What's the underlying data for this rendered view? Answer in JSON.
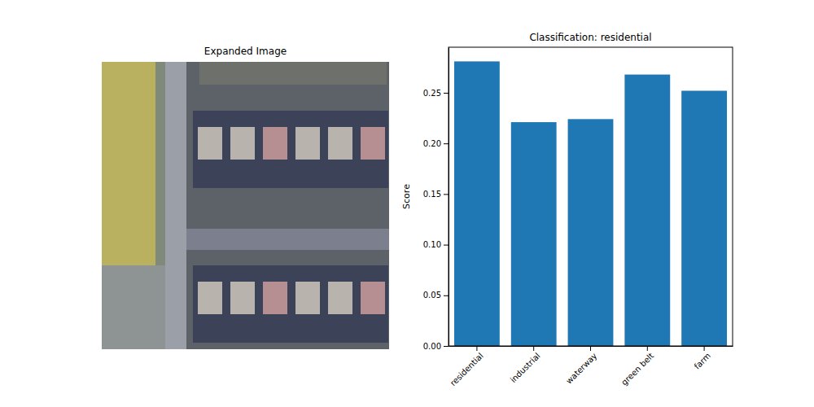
{
  "image": {
    "title": "Expanded Image"
  },
  "chart_data": {
    "type": "bar",
    "title": "Classification: residential",
    "categories": [
      "residential",
      "industrial",
      "waterway",
      "green belt",
      "farm"
    ],
    "values": [
      0.281,
      0.221,
      0.224,
      0.268,
      0.252
    ],
    "color": "#1f77b4",
    "y_label": "Score",
    "ylim": [
      0,
      0.295
    ],
    "yticks": [
      {
        "value": 0,
        "label": "0.00"
      },
      {
        "value": 0.05,
        "label": "0.05"
      },
      {
        "value": 0.1,
        "label": "0.10"
      },
      {
        "value": 0.15,
        "label": "0.15"
      },
      {
        "value": 0.2,
        "label": "0.20"
      },
      {
        "value": 0.25,
        "label": "0.25"
      }
    ],
    "grid": false
  }
}
